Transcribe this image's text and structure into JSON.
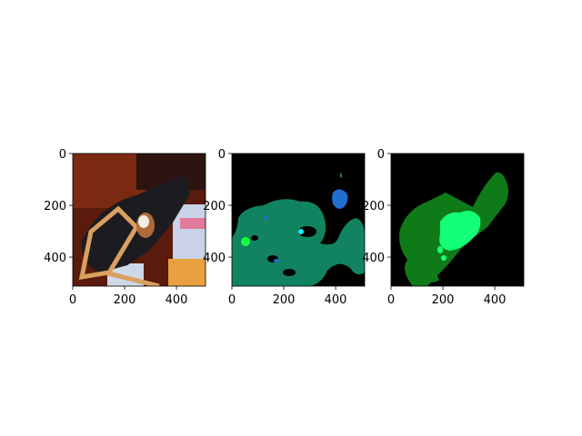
{
  "chart_data": [
    {
      "type": "image",
      "title": "",
      "xlabel": "",
      "ylabel": "",
      "x_ticks": [
        0,
        200,
        400
      ],
      "y_ticks": [
        0,
        200,
        400
      ],
      "xlim": [
        0,
        512
      ],
      "ylim": [
        512,
        0
      ],
      "content": "photo"
    },
    {
      "type": "image",
      "title": "",
      "xlabel": "",
      "ylabel": "",
      "x_ticks": [
        0,
        200,
        400
      ],
      "y_ticks": [
        0,
        200,
        400
      ],
      "xlim": [
        0,
        512
      ],
      "ylim": [
        512,
        0
      ],
      "content": "segmentation-prediction"
    },
    {
      "type": "image",
      "title": "",
      "xlabel": "",
      "ylabel": "",
      "x_ticks": [
        0,
        200,
        400
      ],
      "y_ticks": [
        0,
        200,
        400
      ],
      "xlim": [
        0,
        512
      ],
      "ylim": [
        512,
        0
      ],
      "content": "segmentation-ground-truth"
    }
  ],
  "colors": {
    "mask_background": "#000000",
    "teal_region": "#128360",
    "blue_region": "#1f6fd1",
    "dark_green_region": "#0e7a18",
    "bright_green_region": "#14ff78"
  }
}
